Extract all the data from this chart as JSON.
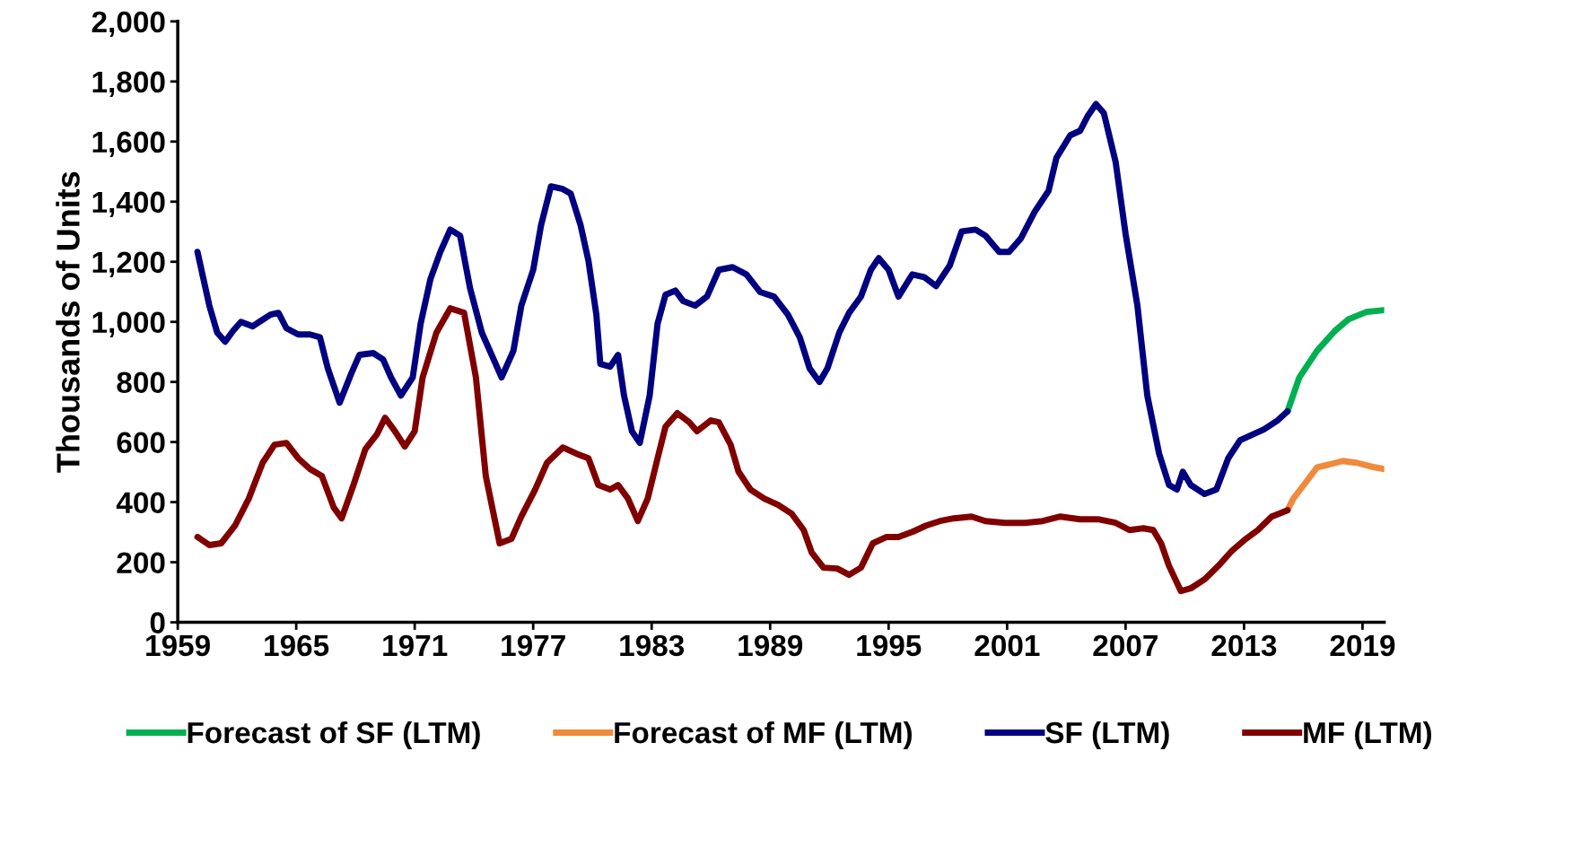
{
  "chart_data": {
    "type": "line",
    "ylabel": "Thousands of Units",
    "xlim": [
      1959,
      2020.1
    ],
    "xticks": [
      1959,
      1965,
      1971,
      1977,
      1983,
      1989,
      1995,
      2001,
      2007,
      2013,
      2019
    ],
    "ylim": [
      0,
      2000
    ],
    "yticks": [
      {
        "value": 0,
        "label": "0"
      },
      {
        "value": 200,
        "label": "200"
      },
      {
        "value": 400,
        "label": "400"
      },
      {
        "value": 600,
        "label": "600"
      },
      {
        "value": 800,
        "label": "800"
      },
      {
        "value": 1000,
        "label": "1,000"
      },
      {
        "value": 1200,
        "label": "1,200"
      },
      {
        "value": 1400,
        "label": "1,400"
      },
      {
        "value": 1600,
        "label": "1,600"
      },
      {
        "value": 1800,
        "label": "1,800"
      },
      {
        "value": 2000,
        "label": "2,000"
      }
    ],
    "grid": false,
    "legend": "bottom",
    "marker": "none",
    "line_style": "solid",
    "series": [
      {
        "name": "Forecast of SF (LTM)",
        "color": "#00b050",
        "x": [
          2015.2,
          2015.8,
          2016.7,
          2017.6,
          2018.3,
          2019.2,
          2020.1
        ],
        "values": [
          702,
          815,
          904,
          970,
          1009,
          1033,
          1039
        ]
      },
      {
        "name": "Forecast of MF (LTM)",
        "color": "#f08a3c",
        "x": [
          2015.2,
          2015.5,
          2016.2,
          2016.7,
          2017.3,
          2018.0,
          2018.7,
          2019.6,
          2020.1
        ],
        "values": [
          373,
          412,
          472,
          516,
          525,
          537,
          531,
          516,
          510
        ]
      },
      {
        "name": "SF (LTM)",
        "color": "#000080",
        "x": [
          1960.0,
          1960.3,
          1960.6,
          1961.0,
          1961.4,
          1961.8,
          1962.2,
          1962.8,
          1963.2,
          1963.7,
          1964.1,
          1964.5,
          1965.1,
          1965.7,
          1966.2,
          1966.6,
          1967.2,
          1967.8,
          1968.2,
          1968.9,
          1969.4,
          1969.8,
          1970.3,
          1970.9,
          1971.3,
          1971.8,
          1972.3,
          1972.8,
          1973.3,
          1973.8,
          1974.4,
          1975.0,
          1975.4,
          1976.0,
          1976.4,
          1977.0,
          1977.4,
          1977.9,
          1978.5,
          1978.9,
          1979.4,
          1979.8,
          1980.2,
          1980.4,
          1980.9,
          1981.3,
          1981.6,
          1982.0,
          1982.4,
          1982.9,
          1983.3,
          1983.7,
          1984.2,
          1984.6,
          1985.2,
          1985.8,
          1986.4,
          1987.1,
          1987.8,
          1988.5,
          1989.2,
          1989.9,
          1990.5,
          1991.0,
          1991.5,
          1991.9,
          1992.5,
          1993.0,
          1993.6,
          1994.1,
          1994.5,
          1995.0,
          1995.5,
          1996.2,
          1996.8,
          1997.4,
          1998.1,
          1998.7,
          1999.4,
          1999.9,
          2000.6,
          2001.1,
          2001.7,
          2002.4,
          2003.1,
          2003.5,
          2004.2,
          2004.7,
          2005.1,
          2005.5,
          2005.9,
          2006.5,
          2007.0,
          2007.6,
          2008.1,
          2008.7,
          2009.2,
          2009.6,
          2009.9,
          2010.3,
          2011.0,
          2011.6,
          2012.2,
          2012.8,
          2013.3,
          2014.0,
          2014.7,
          2015.2
        ],
        "values": [
          1233,
          1143,
          1054,
          964,
          934,
          970,
          1000,
          985,
          1003,
          1024,
          1030,
          979,
          958,
          958,
          949,
          845,
          731,
          830,
          890,
          896,
          875,
          815,
          755,
          815,
          994,
          1143,
          1233,
          1307,
          1287,
          1113,
          964,
          875,
          815,
          904,
          1054,
          1173,
          1322,
          1451,
          1442,
          1427,
          1322,
          1203,
          1024,
          860,
          851,
          890,
          755,
          636,
          597,
          755,
          994,
          1090,
          1104,
          1069,
          1054,
          1084,
          1173,
          1182,
          1158,
          1099,
          1084,
          1024,
          949,
          845,
          800,
          845,
          964,
          1030,
          1084,
          1173,
          1212,
          1173,
          1084,
          1158,
          1149,
          1119,
          1188,
          1301,
          1307,
          1287,
          1233,
          1233,
          1278,
          1367,
          1436,
          1546,
          1621,
          1636,
          1687,
          1725,
          1695,
          1531,
          1293,
          1054,
          755,
          561,
          457,
          442,
          501,
          457,
          427,
          442,
          546,
          606,
          621,
          642,
          672,
          702
        ]
      },
      {
        "name": "MF (LTM)",
        "color": "#800000",
        "x": [
          1960.0,
          1960.6,
          1961.2,
          1961.9,
          1962.6,
          1963.3,
          1963.9,
          1964.5,
          1965.1,
          1965.7,
          1966.3,
          1966.9,
          1967.3,
          1967.9,
          1968.5,
          1969.1,
          1969.5,
          1970.0,
          1970.5,
          1971.0,
          1971.4,
          1972.1,
          1972.8,
          1973.5,
          1974.1,
          1974.6,
          1975.3,
          1975.9,
          1976.4,
          1977.1,
          1977.7,
          1978.5,
          1979.2,
          1979.8,
          1980.3,
          1980.9,
          1981.3,
          1981.8,
          1982.3,
          1982.8,
          1983.3,
          1983.7,
          1984.3,
          1984.9,
          1985.3,
          1986.0,
          1986.4,
          1987.0,
          1987.4,
          1988.0,
          1988.7,
          1989.4,
          1990.1,
          1990.7,
          1991.1,
          1991.7,
          1992.4,
          1993.0,
          1993.6,
          1994.2,
          1994.9,
          1995.5,
          1996.2,
          1996.9,
          1997.6,
          1998.3,
          1999.2,
          1999.9,
          2000.9,
          2001.9,
          2002.8,
          2003.7,
          2004.7,
          2005.6,
          2006.5,
          2007.2,
          2007.9,
          2008.4,
          2008.8,
          2009.2,
          2009.8,
          2010.3,
          2011.0,
          2011.7,
          2012.4,
          2013.1,
          2013.7,
          2014.4,
          2015.2
        ],
        "values": [
          284,
          257,
          263,
          322,
          412,
          531,
          591,
          597,
          546,
          510,
          487,
          382,
          346,
          457,
          576,
          627,
          681,
          636,
          585,
          636,
          815,
          964,
          1045,
          1030,
          815,
          487,
          263,
          278,
          352,
          442,
          531,
          582,
          561,
          546,
          457,
          442,
          457,
          412,
          337,
          412,
          546,
          651,
          696,
          666,
          636,
          672,
          666,
          591,
          501,
          442,
          412,
          391,
          361,
          307,
          233,
          182,
          179,
          158,
          182,
          263,
          284,
          284,
          301,
          322,
          337,
          346,
          352,
          337,
          331,
          331,
          337,
          352,
          343,
          343,
          331,
          307,
          313,
          307,
          263,
          188,
          104,
          113,
          143,
          188,
          239,
          278,
          307,
          352,
          373
        ]
      }
    ]
  }
}
